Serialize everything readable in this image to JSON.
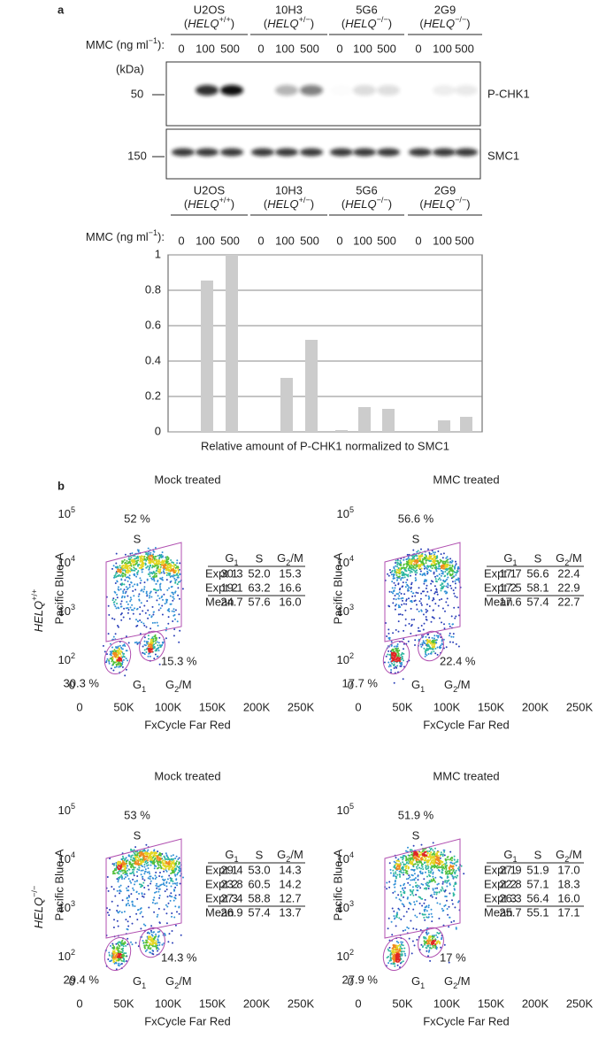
{
  "panel_a": {
    "label": "a",
    "groups": [
      {
        "name": "U2OS",
        "genotype": [
          {
            "text": "("
          },
          {
            "text": "HELQ",
            "style": "italic"
          },
          {
            "text": "+/+",
            "style": "sup"
          },
          {
            "text": ")"
          }
        ]
      },
      {
        "name": "10H3",
        "genotype": [
          {
            "text": "("
          },
          {
            "text": "HELQ",
            "style": "italic"
          },
          {
            "text": "+/−",
            "style": "sup"
          },
          {
            "text": ")"
          }
        ]
      },
      {
        "name": "5G6",
        "genotype": [
          {
            "text": "("
          },
          {
            "text": "HELQ",
            "style": "italic"
          },
          {
            "text": "−/−",
            "style": "sup"
          },
          {
            "text": ")"
          }
        ]
      },
      {
        "name": "2G9",
        "genotype": [
          {
            "text": "("
          },
          {
            "text": "HELQ",
            "style": "italic"
          },
          {
            "text": "−/−",
            "style": "sup"
          },
          {
            "text": ")"
          }
        ]
      }
    ],
    "mmc_label": [
      {
        "text": "MMC (ng ml"
      },
      {
        "text": "−1",
        "style": "sup"
      },
      {
        "text": "):"
      }
    ],
    "doses": [
      "0",
      "100",
      "500",
      "0",
      "100",
      "500",
      "0",
      "100",
      "500",
      "0",
      "100",
      "500"
    ],
    "kda_label": "(kDa)",
    "blots": [
      {
        "marker": "50",
        "label": "P-CHK1"
      },
      {
        "marker": "150",
        "label": "SMC1"
      }
    ]
  },
  "chart_data": {
    "type": "bar",
    "groups": [
      {
        "name": "U2OS",
        "genotype": [
          {
            "text": "("
          },
          {
            "text": "HELQ",
            "style": "italic"
          },
          {
            "text": "+/+",
            "style": "sup"
          },
          {
            "text": ")"
          }
        ]
      },
      {
        "name": "10H3",
        "genotype": [
          {
            "text": "("
          },
          {
            "text": "HELQ",
            "style": "italic"
          },
          {
            "text": "+/−",
            "style": "sup"
          },
          {
            "text": ")"
          }
        ]
      },
      {
        "name": "5G6",
        "genotype": [
          {
            "text": "("
          },
          {
            "text": "HELQ",
            "style": "italic"
          },
          {
            "text": "−/−",
            "style": "sup"
          },
          {
            "text": ")"
          }
        ]
      },
      {
        "name": "2G9",
        "genotype": [
          {
            "text": "("
          },
          {
            "text": "HELQ",
            "style": "italic"
          },
          {
            "text": "−/−",
            "style": "sup"
          },
          {
            "text": ")"
          }
        ]
      }
    ],
    "mmc_label": [
      {
        "text": "MMC (ng ml"
      },
      {
        "text": "−1",
        "style": "sup"
      },
      {
        "text": "):"
      }
    ],
    "categories": [
      "0",
      "100",
      "500",
      "0",
      "100",
      "500",
      "0",
      "100",
      "500",
      "0",
      "100",
      "500"
    ],
    "values": [
      0,
      0.855,
      1.0,
      0,
      0.305,
      0.52,
      0.01,
      0.14,
      0.13,
      0,
      0.065,
      0.085
    ],
    "color": "#cccccc",
    "ylim": [
      0,
      1
    ],
    "yticks": [
      0,
      0.2,
      0.4,
      0.6,
      0.8,
      1
    ],
    "grid": true,
    "xlabel": "Relative amount of P-CHK1 normalized to SMC1"
  },
  "panel_b": {
    "label": "b",
    "row_labels": [
      [
        {
          "text": "HELQ",
          "style": "italic"
        },
        {
          "text": "+/+",
          "style": "sup"
        }
      ],
      [
        {
          "text": "HELQ",
          "style": "italic"
        },
        {
          "text": "−/−",
          "style": "sup"
        }
      ]
    ],
    "plots": [
      {
        "title": "Mock treated",
        "ylabel": "Pacific Blue-A",
        "xlabel": "FxCycle Far Red",
        "xlim": [
          0,
          250000
        ],
        "xticks": [
          0,
          {
            "value": 50000,
            "label": "50K"
          },
          {
            "value": 100000,
            "label": "100K"
          },
          {
            "value": 150000,
            "label": "150K"
          },
          {
            "value": 200000,
            "label": "200K"
          },
          {
            "value": 250000,
            "label": "250K"
          }
        ],
        "ylim": [
          0,
          100000
        ],
        "yticks": [
          0,
          {
            "value": 100,
            "label": [
              {
                "text": "10"
              },
              {
                "text": "2",
                "style": "sup"
              }
            ]
          },
          {
            "value": 1000,
            "label": [
              {
                "text": "10"
              },
              {
                "text": "3",
                "style": "sup"
              }
            ]
          },
          {
            "value": 10000,
            "label": [
              {
                "text": "10"
              },
              {
                "text": "4",
                "style": "sup"
              }
            ]
          },
          {
            "value": 100000,
            "label": [
              {
                "text": "10"
              },
              {
                "text": "5",
                "style": "sup"
              }
            ]
          }
        ],
        "gates": {
          "s": {
            "percent": "52 %",
            "label": "S"
          },
          "g1": {
            "percent": "30.3 %",
            "label": [
              {
                "text": "G"
              },
              {
                "text": "1",
                "style": "sub"
              }
            ]
          },
          "g2m": {
            "percent": "15.3 %",
            "label": [
              {
                "text": "G"
              },
              {
                "text": "2",
                "style": "sub"
              },
              {
                "text": "/M"
              }
            ]
          }
        },
        "table": {
          "header": [
            [
              {
                "text": "G"
              },
              {
                "text": "1",
                "style": "sub"
              }
            ],
            "S",
            [
              {
                "text": "G"
              },
              {
                "text": "2",
                "style": "sub"
              },
              {
                "text": "/M"
              }
            ]
          ],
          "rows": [
            [
              "Expt 1",
              "30.3",
              "52.0",
              "15.3"
            ],
            [
              "Expt 2",
              "19.1",
              "63.2",
              "16.6"
            ],
            [
              "Mean",
              "24.7",
              "57.6",
              "16.0"
            ]
          ]
        }
      },
      {
        "title": "MMC treated",
        "ylabel": "Pacific Blue-A",
        "xlabel": "FxCycle Far Red",
        "xlim": [
          0,
          250000
        ],
        "xticks": [
          0,
          {
            "value": 50000,
            "label": "50K"
          },
          {
            "value": 100000,
            "label": "100K"
          },
          {
            "value": 150000,
            "label": "150K"
          },
          {
            "value": 200000,
            "label": "200K"
          },
          {
            "value": 250000,
            "label": "250K"
          }
        ],
        "ylim": [
          0,
          100000
        ],
        "yticks": [
          0,
          {
            "value": 100,
            "label": [
              {
                "text": "10"
              },
              {
                "text": "2",
                "style": "sup"
              }
            ]
          },
          {
            "value": 1000,
            "label": [
              {
                "text": "10"
              },
              {
                "text": "3",
                "style": "sup"
              }
            ]
          },
          {
            "value": 10000,
            "label": [
              {
                "text": "10"
              },
              {
                "text": "4",
                "style": "sup"
              }
            ]
          },
          {
            "value": 100000,
            "label": [
              {
                "text": "10"
              },
              {
                "text": "5",
                "style": "sup"
              }
            ]
          }
        ],
        "gates": {
          "s": {
            "percent": "56.6 %",
            "label": "S"
          },
          "g1": {
            "percent": "17.7 %",
            "label": [
              {
                "text": "G"
              },
              {
                "text": "1",
                "style": "sub"
              }
            ]
          },
          "g2m": {
            "percent": "22.4 %",
            "label": [
              {
                "text": "G"
              },
              {
                "text": "2",
                "style": "sub"
              },
              {
                "text": "/M"
              }
            ]
          }
        },
        "table": {
          "header": [
            [
              {
                "text": "G"
              },
              {
                "text": "1",
                "style": "sub"
              }
            ],
            "S",
            [
              {
                "text": "G"
              },
              {
                "text": "2",
                "style": "sub"
              },
              {
                "text": "/M"
              }
            ]
          ],
          "rows": [
            [
              "Expt 1",
              "17.7",
              "56.6",
              "22.4"
            ],
            [
              "Expt 2",
              "17.5",
              "58.1",
              "22.9"
            ],
            [
              "Mean",
              "17.6",
              "57.4",
              "22.7"
            ]
          ]
        }
      },
      {
        "title": "Mock treated",
        "ylabel": "Pacific Blue-A",
        "xlabel": "FxCycle Far Red",
        "xlim": [
          0,
          250000
        ],
        "xticks": [
          0,
          {
            "value": 50000,
            "label": "50K"
          },
          {
            "value": 100000,
            "label": "100K"
          },
          {
            "value": 150000,
            "label": "150K"
          },
          {
            "value": 200000,
            "label": "200K"
          },
          {
            "value": 250000,
            "label": "250K"
          }
        ],
        "ylim": [
          0,
          100000
        ],
        "yticks": [
          0,
          {
            "value": 100,
            "label": [
              {
                "text": "10"
              },
              {
                "text": "2",
                "style": "sup"
              }
            ]
          },
          {
            "value": 1000,
            "label": [
              {
                "text": "10"
              },
              {
                "text": "3",
                "style": "sup"
              }
            ]
          },
          {
            "value": 10000,
            "label": [
              {
                "text": "10"
              },
              {
                "text": "4",
                "style": "sup"
              }
            ]
          },
          {
            "value": 100000,
            "label": [
              {
                "text": "10"
              },
              {
                "text": "5",
                "style": "sup"
              }
            ]
          }
        ],
        "gates": {
          "s": {
            "percent": "53 %",
            "label": "S"
          },
          "g1": {
            "percent": "29.4 %",
            "label": [
              {
                "text": "G"
              },
              {
                "text": "1",
                "style": "sub"
              }
            ]
          },
          "g2m": {
            "percent": "14.3 %",
            "label": [
              {
                "text": "G"
              },
              {
                "text": "2",
                "style": "sub"
              },
              {
                "text": "/M"
              }
            ]
          }
        },
        "table": {
          "header": [
            [
              {
                "text": "G"
              },
              {
                "text": "1",
                "style": "sub"
              }
            ],
            "S",
            [
              {
                "text": "G"
              },
              {
                "text": "2",
                "style": "sub"
              },
              {
                "text": "/M"
              }
            ]
          ],
          "rows": [
            [
              "Expt 1",
              "29.4",
              "53.0",
              "14.3"
            ],
            [
              "Expt 2",
              "23.8",
              "60.5",
              "14.2"
            ],
            [
              "Expt 3",
              "27.4",
              "58.8",
              "12.7"
            ],
            [
              "Mean",
              "26.9",
              "57.4",
              "13.7"
            ]
          ]
        }
      },
      {
        "title": "MMC treated",
        "ylabel": "Pacific Blue-A",
        "xlabel": "FxCycle Far Red",
        "xlim": [
          0,
          250000
        ],
        "xticks": [
          0,
          {
            "value": 50000,
            "label": "50K"
          },
          {
            "value": 100000,
            "label": "100K"
          },
          {
            "value": 150000,
            "label": "150K"
          },
          {
            "value": 200000,
            "label": "200K"
          },
          {
            "value": 250000,
            "label": "250K"
          }
        ],
        "ylim": [
          0,
          100000
        ],
        "yticks": [
          0,
          {
            "value": 100,
            "label": [
              {
                "text": "10"
              },
              {
                "text": "2",
                "style": "sup"
              }
            ]
          },
          {
            "value": 1000,
            "label": [
              {
                "text": "10"
              },
              {
                "text": "3",
                "style": "sup"
              }
            ]
          },
          {
            "value": 10000,
            "label": [
              {
                "text": "10"
              },
              {
                "text": "4",
                "style": "sup"
              }
            ]
          },
          {
            "value": 100000,
            "label": [
              {
                "text": "10"
              },
              {
                "text": "5",
                "style": "sup"
              }
            ]
          }
        ],
        "gates": {
          "s": {
            "percent": "51.9 %",
            "label": "S"
          },
          "g1": {
            "percent": "27.9 %",
            "label": [
              {
                "text": "G"
              },
              {
                "text": "1",
                "style": "sub"
              }
            ]
          },
          "g2m": {
            "percent": "17 %",
            "label": [
              {
                "text": "G"
              },
              {
                "text": "2",
                "style": "sub"
              },
              {
                "text": "/M"
              }
            ]
          }
        },
        "table": {
          "header": [
            [
              {
                "text": "G"
              },
              {
                "text": "1",
                "style": "sub"
              }
            ],
            "S",
            [
              {
                "text": "G"
              },
              {
                "text": "2",
                "style": "sub"
              },
              {
                "text": "/M"
              }
            ]
          ],
          "rows": [
            [
              "Expt 1",
              "27.9",
              "51.9",
              "17.0"
            ],
            [
              "Expt 2",
              "22.8",
              "57.1",
              "18.3"
            ],
            [
              "Expt 3",
              "26.3",
              "56.4",
              "16.0"
            ],
            [
              "Mean",
              "25.7",
              "55.1",
              "17.1"
            ]
          ]
        }
      }
    ]
  }
}
